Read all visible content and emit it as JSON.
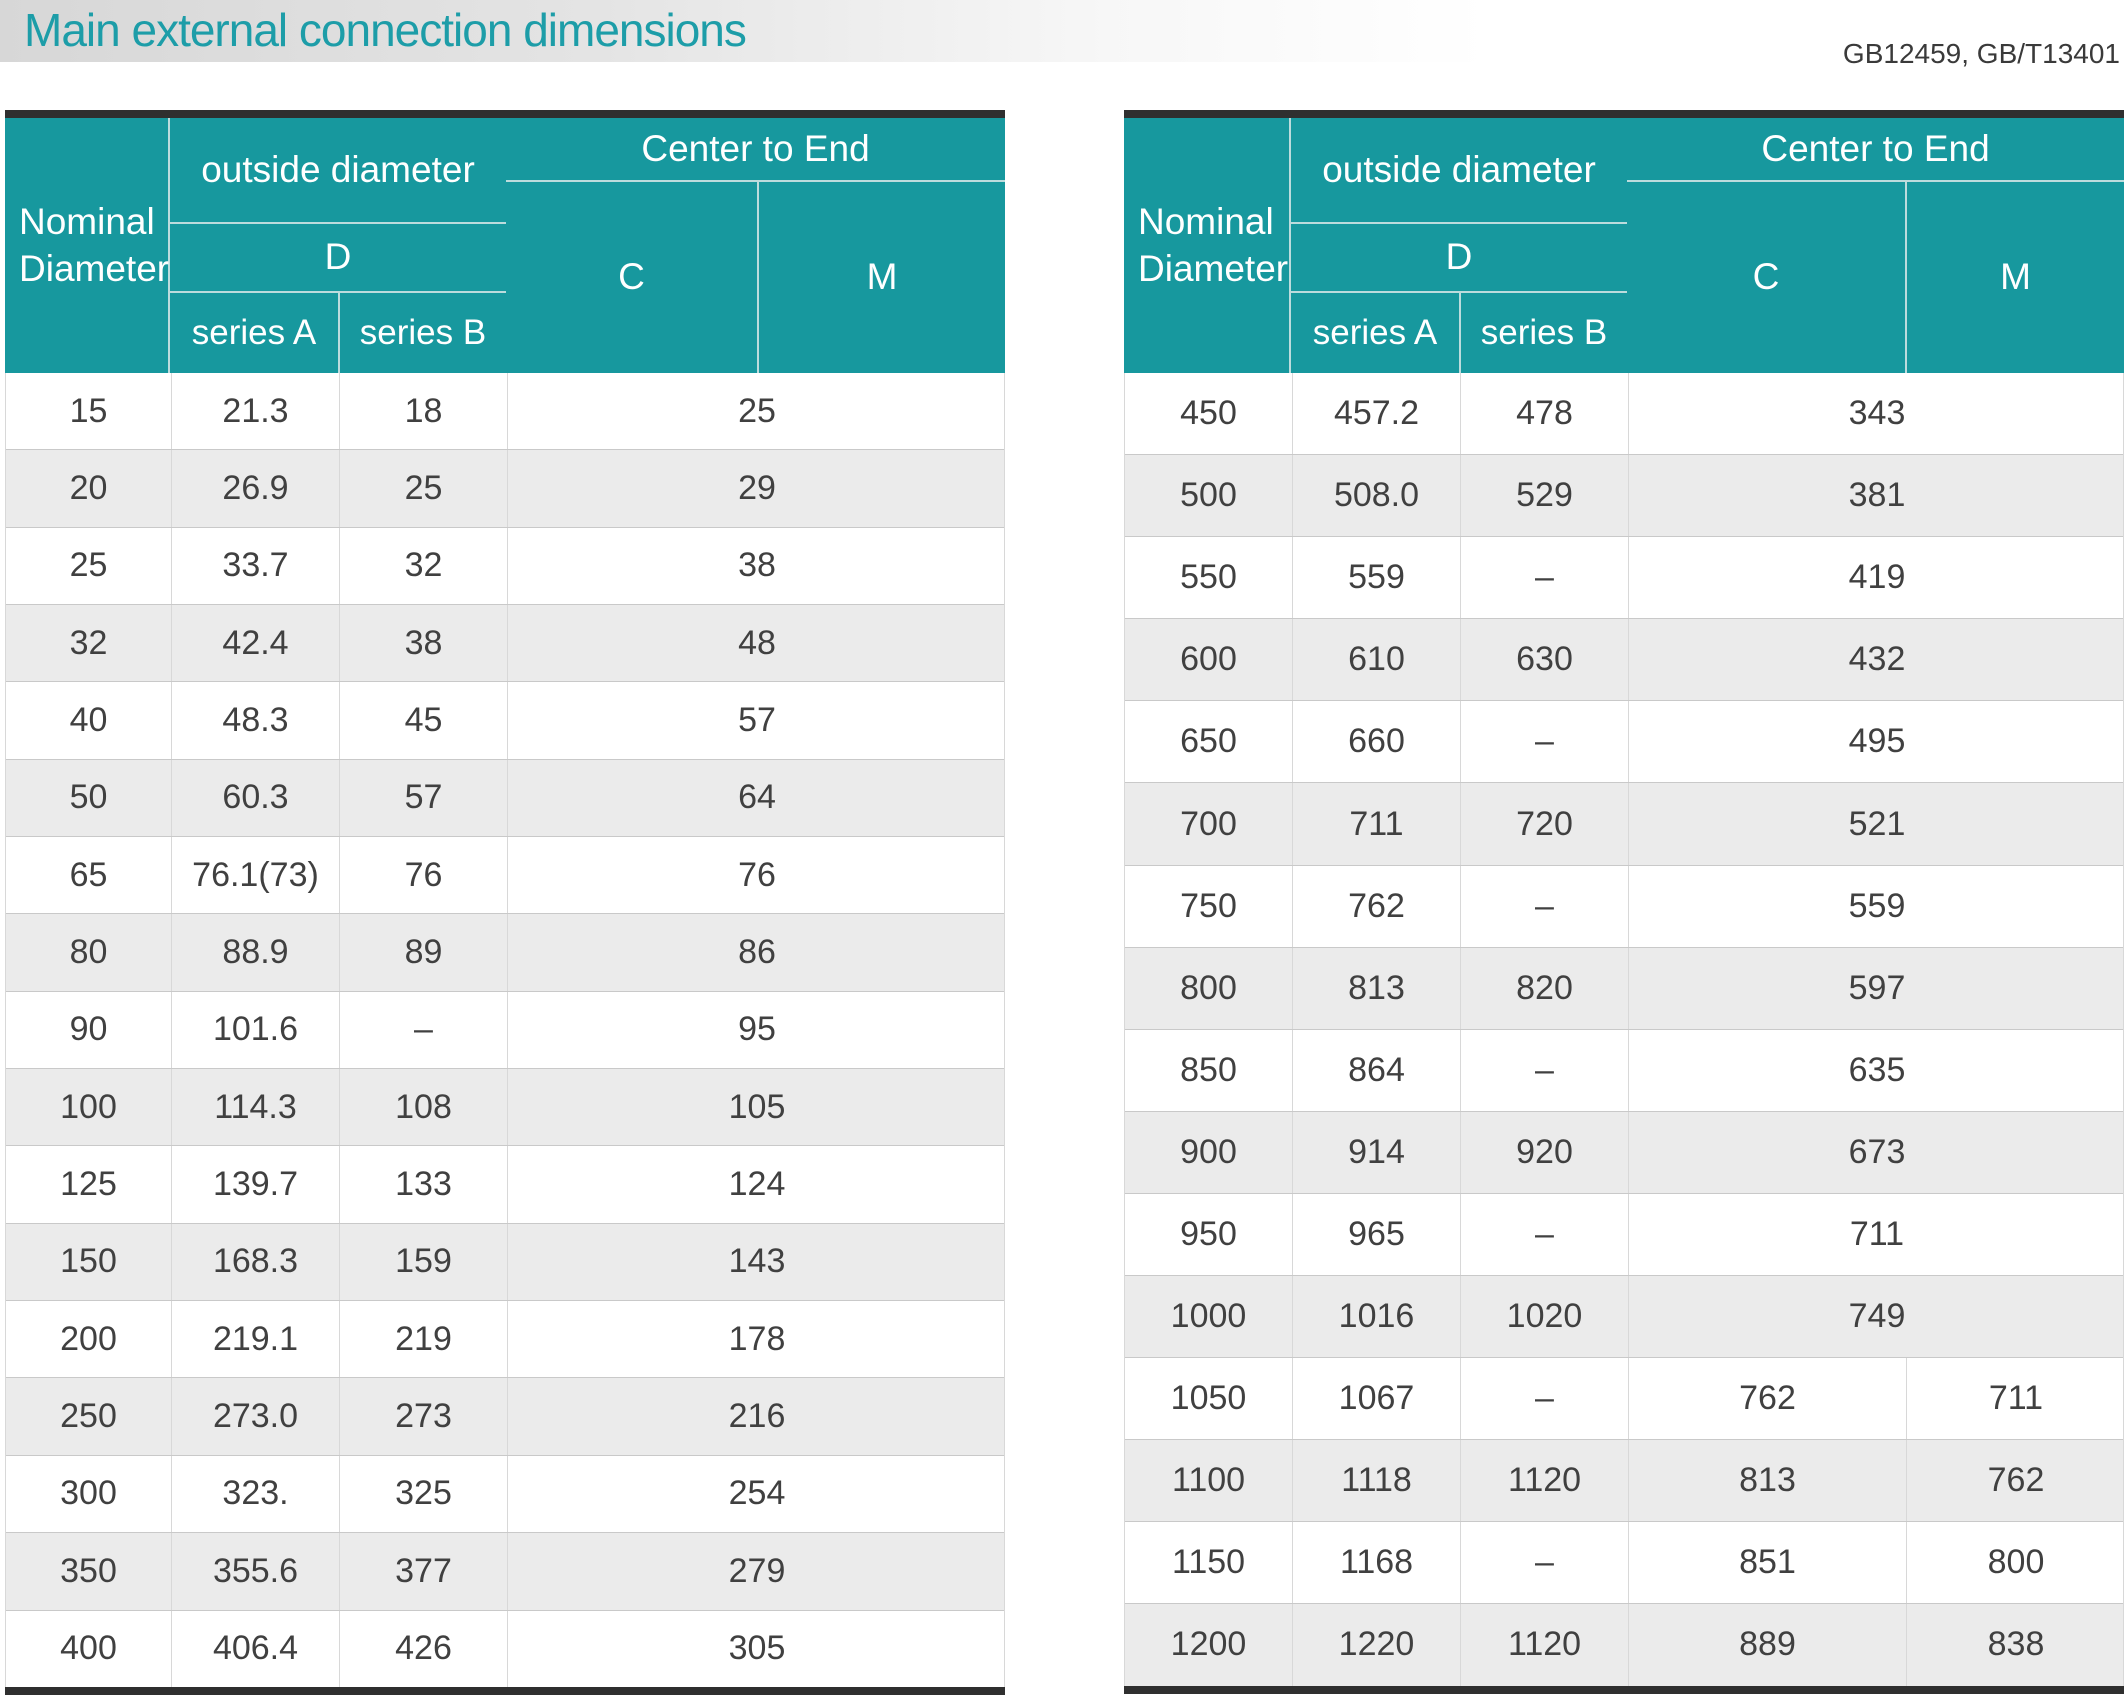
{
  "title": "Main external connection dimensions",
  "standard": "GB12459, GB/T13401",
  "colors": {
    "header_teal": "#17989e",
    "title_text": "#1d9da8",
    "row_alt": "#ebebeb",
    "table_border": "#2f2f2f",
    "cell_text": "#404040"
  },
  "header": {
    "nominal_diameter": "Nominal Diameter",
    "outside_diameter": "outside diameter",
    "d": "D",
    "series_a": "series A",
    "series_b": "series B",
    "center_to_end": "Center to End",
    "c": "C",
    "m": "M"
  },
  "tables": [
    {
      "rows": [
        {
          "nd": "15",
          "a": "21.3",
          "b": "18",
          "cm": "25"
        },
        {
          "nd": "20",
          "a": "26.9",
          "b": "25",
          "cm": "29"
        },
        {
          "nd": "25",
          "a": "33.7",
          "b": "32",
          "cm": "38"
        },
        {
          "nd": "32",
          "a": "42.4",
          "b": "38",
          "cm": "48"
        },
        {
          "nd": "40",
          "a": "48.3",
          "b": "45",
          "cm": "57"
        },
        {
          "nd": "50",
          "a": "60.3",
          "b": "57",
          "cm": "64"
        },
        {
          "nd": "65",
          "a": "76.1(73)",
          "b": "76",
          "cm": "76"
        },
        {
          "nd": "80",
          "a": "88.9",
          "b": "89",
          "cm": "86"
        },
        {
          "nd": "90",
          "a": "101.6",
          "b": "–",
          "cm": "95"
        },
        {
          "nd": "100",
          "a": "114.3",
          "b": "108",
          "cm": "105"
        },
        {
          "nd": "125",
          "a": "139.7",
          "b": "133",
          "cm": "124"
        },
        {
          "nd": "150",
          "a": "168.3",
          "b": "159",
          "cm": "143"
        },
        {
          "nd": "200",
          "a": "219.1",
          "b": "219",
          "cm": "178"
        },
        {
          "nd": "250",
          "a": "273.0",
          "b": "273",
          "cm": "216"
        },
        {
          "nd": "300",
          "a": "323.",
          "b": "325",
          "cm": "254"
        },
        {
          "nd": "350",
          "a": "355.6",
          "b": "377",
          "cm": "279"
        },
        {
          "nd": "400",
          "a": "406.4",
          "b": "426",
          "cm": "305"
        }
      ]
    },
    {
      "rows": [
        {
          "nd": "450",
          "a": "457.2",
          "b": "478",
          "cm": "343"
        },
        {
          "nd": "500",
          "a": "508.0",
          "b": "529",
          "cm": "381"
        },
        {
          "nd": "550",
          "a": "559",
          "b": "–",
          "cm": "419"
        },
        {
          "nd": "600",
          "a": "610",
          "b": "630",
          "cm": "432"
        },
        {
          "nd": "650",
          "a": "660",
          "b": "–",
          "cm": "495"
        },
        {
          "nd": "700",
          "a": "711",
          "b": "720",
          "cm": "521"
        },
        {
          "nd": "750",
          "a": "762",
          "b": "–",
          "cm": "559"
        },
        {
          "nd": "800",
          "a": "813",
          "b": "820",
          "cm": "597"
        },
        {
          "nd": "850",
          "a": "864",
          "b": "–",
          "cm": "635"
        },
        {
          "nd": "900",
          "a": "914",
          "b": "920",
          "cm": "673"
        },
        {
          "nd": "950",
          "a": "965",
          "b": "–",
          "cm": "711"
        },
        {
          "nd": "1000",
          "a": "1016",
          "b": "1020",
          "cm": "749"
        },
        {
          "nd": "1050",
          "a": "1067",
          "b": "–",
          "c": "762",
          "m": "711"
        },
        {
          "nd": "1100",
          "a": "1118",
          "b": "1120",
          "c": "813",
          "m": "762"
        },
        {
          "nd": "1150",
          "a": "1168",
          "b": "–",
          "c": "851",
          "m": "800"
        },
        {
          "nd": "1200",
          "a": "1220",
          "b": "1120",
          "c": "889",
          "m": "838"
        }
      ]
    }
  ]
}
